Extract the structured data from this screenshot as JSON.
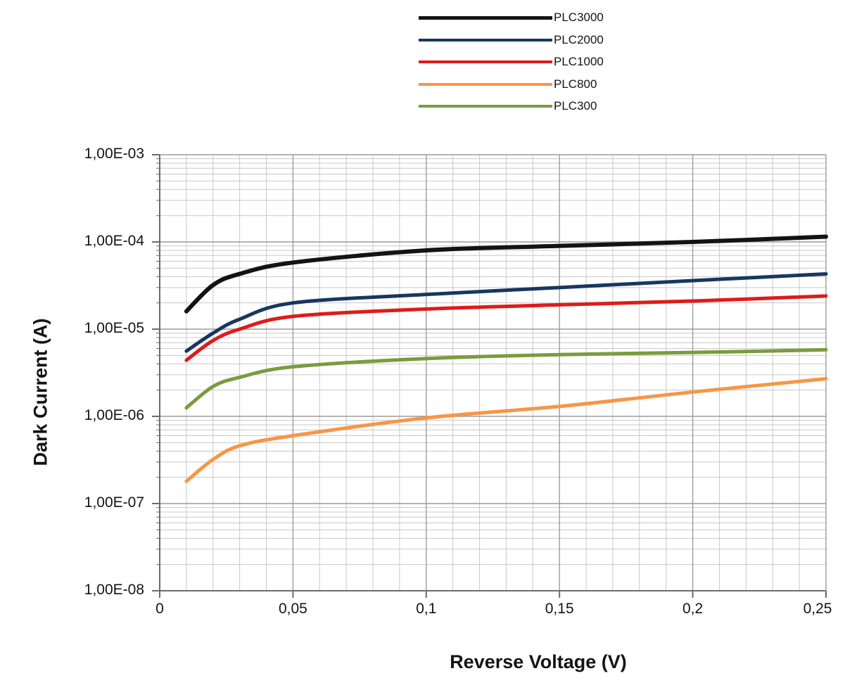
{
  "chart_data": {
    "type": "line",
    "title": "",
    "xlabel": "Reverse Voltage (V)",
    "ylabel": "Dark Current (A)",
    "x_scale": "linear",
    "y_scale": "log",
    "xlim": [
      0,
      0.25
    ],
    "ylim": [
      1e-08,
      0.001
    ],
    "grid": "major+minor, log minor on Y, 0.01V minor on X",
    "legend_position": "top-center",
    "x_tick_labels": [
      "0",
      "0,05",
      "0,1",
      "0,15",
      "0,2",
      "0,25"
    ],
    "x_tick_values": [
      0,
      0.05,
      0.1,
      0.15,
      0.2,
      0.25
    ],
    "y_tick_labels": [
      "1,00E-03",
      "1,00E-04",
      "1,00E-05",
      "1,00E-06",
      "1,00E-07",
      "1,00E-08"
    ],
    "y_tick_values": [
      0.001,
      0.0001,
      1e-05,
      1e-06,
      1e-07,
      1e-08
    ],
    "x": [
      0.01,
      0.02,
      0.03,
      0.05,
      0.1,
      0.15,
      0.2,
      0.25
    ],
    "series": [
      {
        "name": "PLC3000",
        "color": "#131313",
        "values": [
          1.6e-05,
          3.2e-05,
          4.3e-05,
          5.8e-05,
          8e-05,
          9e-05,
          0.0001,
          0.000115
        ]
      },
      {
        "name": "PLC2000",
        "color": "#17375E",
        "values": [
          5.6e-06,
          9e-06,
          1.3e-05,
          2e-05,
          2.5e-05,
          3e-05,
          3.6e-05,
          4.3e-05
        ]
      },
      {
        "name": "PLC1000",
        "color": "#DE1B1B",
        "values": [
          4.4e-06,
          7.4e-06,
          1e-05,
          1.4e-05,
          1.7e-05,
          1.9e-05,
          2.1e-05,
          2.4e-05
        ]
      },
      {
        "name": "PLC800",
        "color": "#F79646",
        "values": [
          1.8e-07,
          3.2e-07,
          4.6e-07,
          6e-07,
          9.6e-07,
          1.3e-06,
          1.9e-06,
          2.7e-06
        ]
      },
      {
        "name": "PLC300",
        "color": "#7A9C3E",
        "values": [
          1.25e-06,
          2.2e-06,
          2.8e-06,
          3.7e-06,
          4.6e-06,
          5.1e-06,
          5.4e-06,
          5.8e-06
        ]
      }
    ]
  },
  "colors": {
    "background": "#ffffff",
    "axis": "#6b6b6b",
    "grid_major": "#9c9c9c",
    "grid_minor": "#c8c8c8",
    "text": "#141414"
  }
}
